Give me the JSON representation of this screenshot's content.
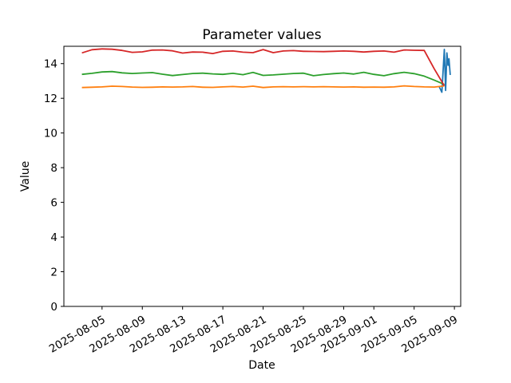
{
  "chart_data": {
    "type": "line",
    "title": "Parameter values",
    "xlabel": "Date",
    "ylabel": "Value",
    "background": "#ffffff",
    "spine_color": "#000000",
    "grid": false,
    "legend": null,
    "ylim": [
      0,
      15.0
    ],
    "xlim": [
      "2025-08-01 05:00",
      "2025-09-09 15:00"
    ],
    "yticks": [
      0,
      2,
      4,
      6,
      8,
      10,
      12,
      14
    ],
    "xticks": [
      "2025-08-05",
      "2025-08-09",
      "2025-08-13",
      "2025-08-17",
      "2025-08-21",
      "2025-08-25",
      "2025-08-29",
      "2025-09-01",
      "2025-09-05",
      "2025-09-09"
    ],
    "xtick_rotation_deg": 30,
    "dates": [
      "2025-08-03",
      "2025-08-04",
      "2025-08-05",
      "2025-08-06",
      "2025-08-07",
      "2025-08-08",
      "2025-08-09",
      "2025-08-10",
      "2025-08-11",
      "2025-08-12",
      "2025-08-13",
      "2025-08-14",
      "2025-08-15",
      "2025-08-16",
      "2025-08-17",
      "2025-08-18",
      "2025-08-19",
      "2025-08-20",
      "2025-08-21",
      "2025-08-22",
      "2025-08-23",
      "2025-08-24",
      "2025-08-25",
      "2025-08-26",
      "2025-08-27",
      "2025-08-28",
      "2025-08-29",
      "2025-08-30",
      "2025-08-31",
      "2025-09-01",
      "2025-09-02",
      "2025-09-03",
      "2025-09-04",
      "2025-09-05",
      "2025-09-06",
      "2025-09-07",
      "2025-09-08"
    ],
    "series": [
      {
        "name": "blue",
        "color": "#1f77b4",
        "x": [
          "2025-09-07 12:00",
          "2025-09-07 18:00",
          "2025-09-08 00:00",
          "2025-09-08 03:00",
          "2025-09-08 06:00",
          "2025-09-08 09:00",
          "2025-09-08 11:00",
          "2025-09-08 14:00"
        ],
        "y": [
          12.66,
          12.35,
          14.82,
          12.45,
          14.62,
          13.9,
          14.28,
          13.35
        ]
      },
      {
        "name": "orange",
        "color": "#ff7f0e",
        "y": [
          12.62,
          12.64,
          12.66,
          12.7,
          12.68,
          12.65,
          12.63,
          12.64,
          12.66,
          12.65,
          12.66,
          12.68,
          12.64,
          12.63,
          12.66,
          12.68,
          12.65,
          12.7,
          12.62,
          12.66,
          12.67,
          12.66,
          12.67,
          12.66,
          12.67,
          12.66,
          12.65,
          12.66,
          12.64,
          12.65,
          12.64,
          12.66,
          12.72,
          12.68,
          12.66,
          12.65,
          12.72
        ]
      },
      {
        "name": "green",
        "color": "#2ca02c",
        "y": [
          13.38,
          13.44,
          13.52,
          13.54,
          13.47,
          13.43,
          13.46,
          13.48,
          13.39,
          13.31,
          13.37,
          13.43,
          13.45,
          13.41,
          13.38,
          13.44,
          13.36,
          13.49,
          13.32,
          13.35,
          13.39,
          13.43,
          13.45,
          13.3,
          13.37,
          13.42,
          13.46,
          13.4,
          13.5,
          13.38,
          13.3,
          13.42,
          13.5,
          13.42,
          13.28,
          13.05,
          12.8
        ]
      },
      {
        "name": "red",
        "color": "#d62728",
        "y": [
          14.62,
          14.8,
          14.85,
          14.83,
          14.76,
          14.65,
          14.68,
          14.78,
          14.79,
          14.74,
          14.61,
          14.67,
          14.66,
          14.58,
          14.71,
          14.73,
          14.66,
          14.63,
          14.81,
          14.63,
          14.73,
          14.75,
          14.71,
          14.7,
          14.69,
          14.71,
          14.73,
          14.71,
          14.67,
          14.71,
          14.73,
          14.66,
          14.79,
          14.77,
          14.76,
          13.7,
          12.72
        ]
      }
    ]
  }
}
